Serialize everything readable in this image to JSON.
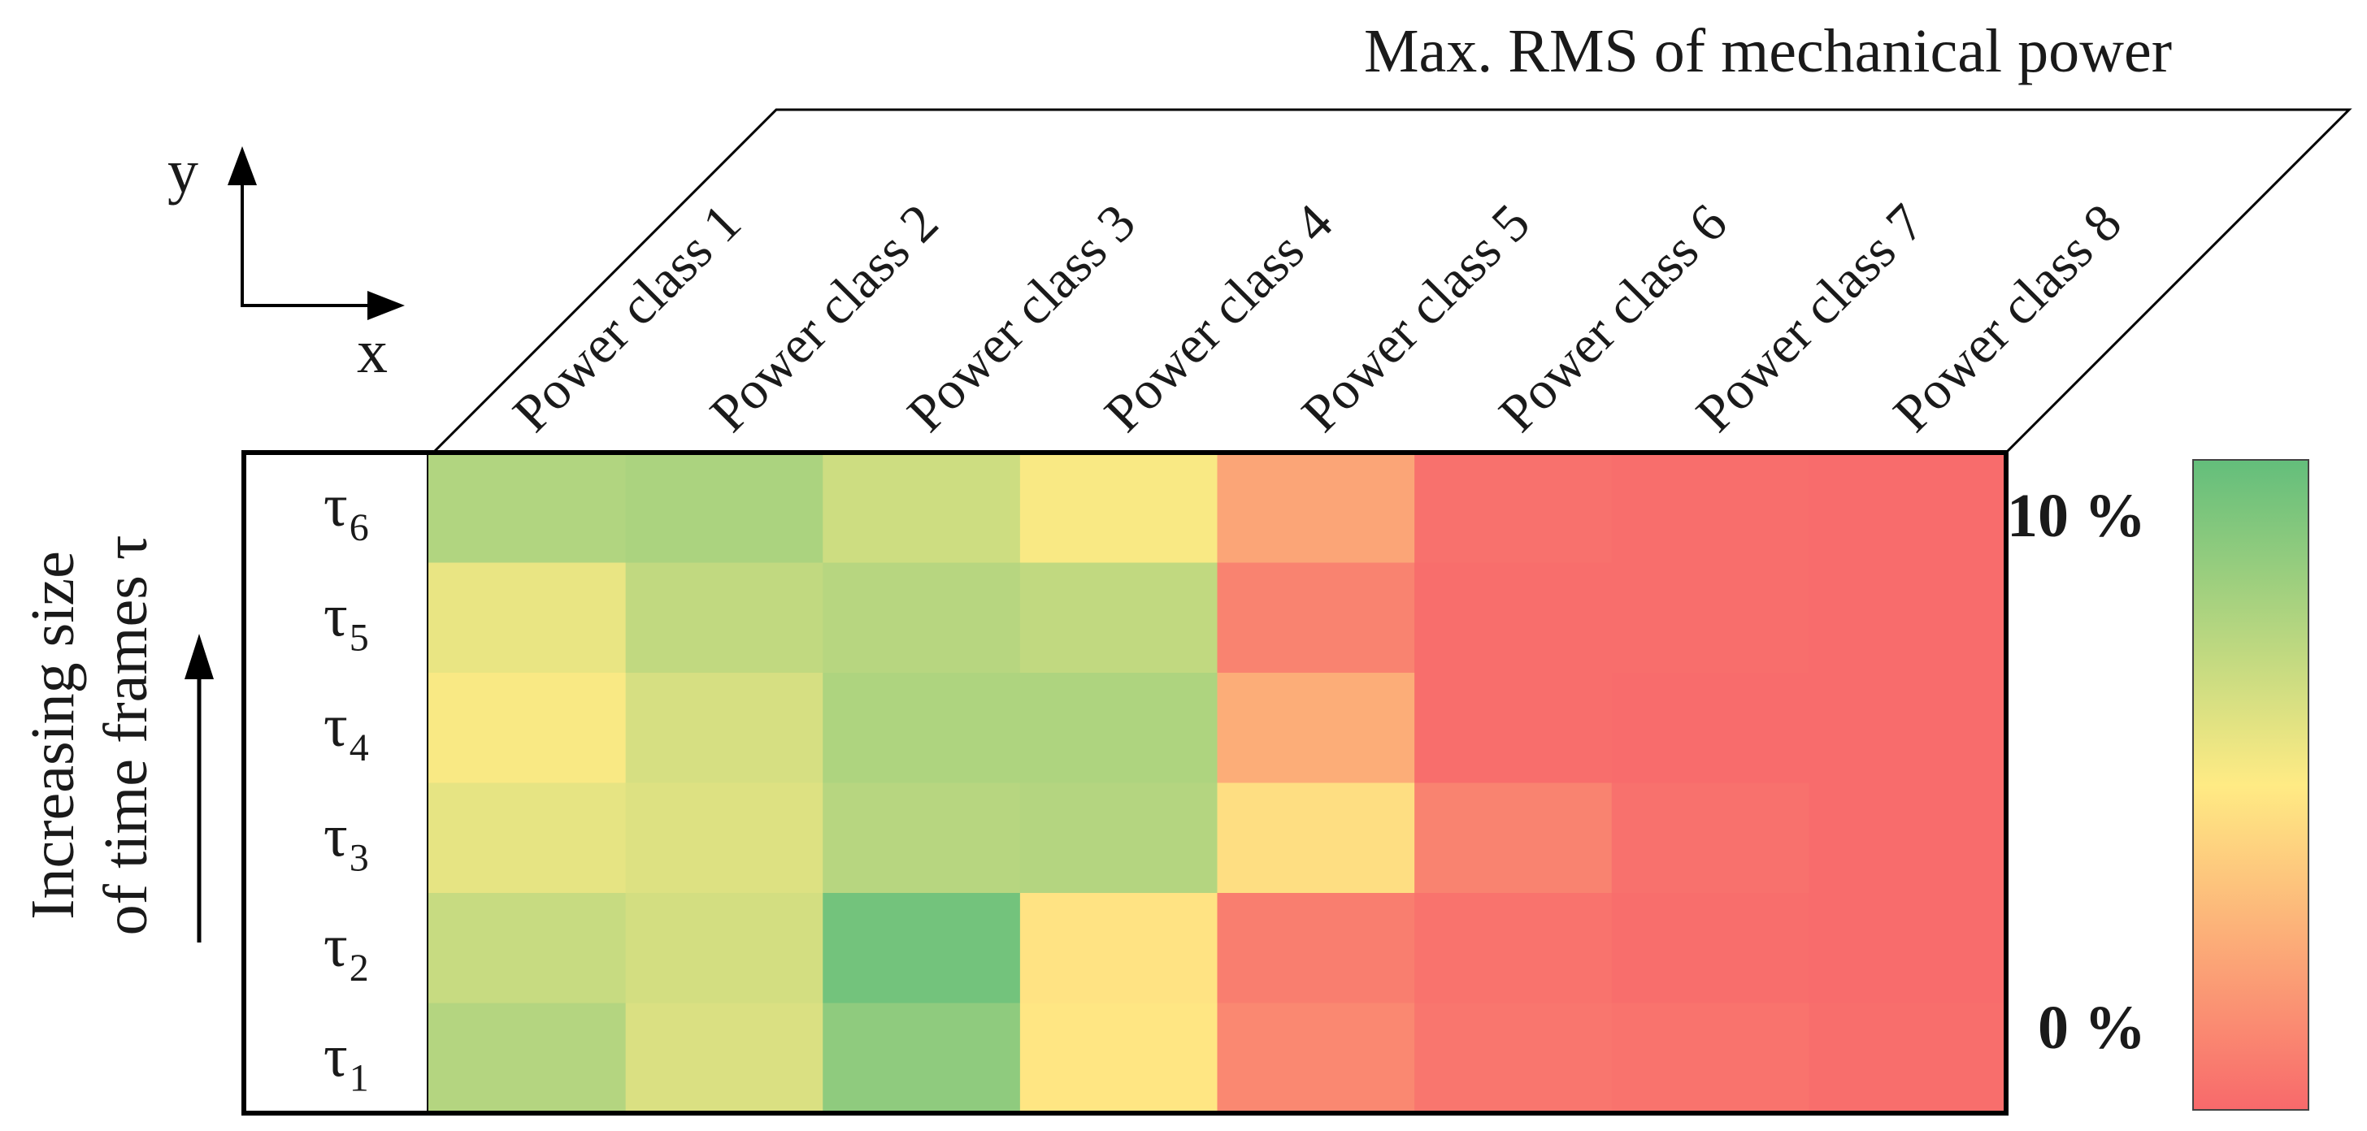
{
  "chart_data": {
    "type": "heatmap",
    "title": "Max. RMS of mechanical power",
    "columns": [
      "Power class 1",
      "Power class 2",
      "Power class 3",
      "Power class 4",
      "Power class 5",
      "Power class 6",
      "Power class 7",
      "Power class 8"
    ],
    "rows": [
      {
        "symbol": "τ",
        "subscript": "6"
      },
      {
        "symbol": "τ",
        "subscript": "5"
      },
      {
        "symbol": "τ",
        "subscript": "4"
      },
      {
        "symbol": "τ",
        "subscript": "3"
      },
      {
        "symbol": "τ",
        "subscript": "2"
      },
      {
        "symbol": "τ",
        "subscript": "1"
      }
    ],
    "values_percent": [
      [
        7.5,
        7.7,
        6.6,
        5.2,
        2.3,
        0.3,
        0.2,
        0.1
      ],
      [
        5.7,
        7.0,
        7.3,
        7.0,
        1.0,
        0.2,
        0.2,
        0.1
      ],
      [
        5.2,
        6.3,
        7.6,
        7.6,
        2.6,
        0.2,
        0.1,
        0.1
      ],
      [
        5.8,
        6.1,
        7.3,
        7.4,
        4.5,
        1.0,
        0.3,
        0.1
      ],
      [
        6.8,
        6.4,
        9.5,
        4.7,
        0.8,
        0.4,
        0.2,
        0.1
      ],
      [
        7.4,
        6.2,
        8.6,
        4.8,
        1.2,
        0.5,
        0.4,
        0.2
      ]
    ],
    "row_axis_label_line1": "Increasing size",
    "row_axis_label_line2": "of time frames τ",
    "colorbar": {
      "min_label": "0 %",
      "max_label": "10 %",
      "min": 0,
      "max": 10,
      "low_color": "#f8696b",
      "mid_color": "#ffeb84",
      "high_color": "#63be7b"
    }
  },
  "axes_icon": {
    "y_label": "y",
    "x_label": "x"
  }
}
